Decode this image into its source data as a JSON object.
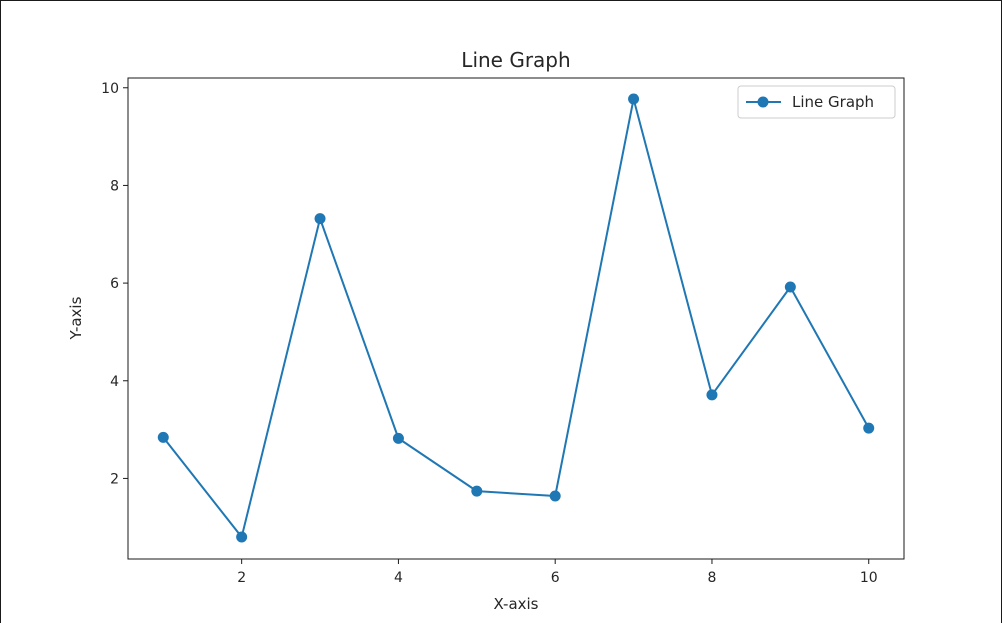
{
  "chart_data": {
    "type": "line",
    "title": "Line Graph",
    "xlabel": "X-axis",
    "ylabel": "Y-axis",
    "xlim": [
      0.55,
      10.45
    ],
    "ylim": [
      0.35,
      10.2
    ],
    "xticks": [
      2,
      4,
      6,
      8,
      10
    ],
    "yticks": [
      2,
      4,
      6,
      8,
      10
    ],
    "grid": false,
    "legend_position": "top-right",
    "series": [
      {
        "name": "Line Graph",
        "color": "#1f77b4",
        "marker": "circle",
        "x": [
          1,
          2,
          3,
          4,
          5,
          6,
          7,
          8,
          9,
          10
        ],
        "y": [
          2.84,
          0.8,
          7.32,
          2.82,
          1.74,
          1.64,
          9.77,
          3.71,
          5.92,
          3.03
        ]
      }
    ]
  }
}
